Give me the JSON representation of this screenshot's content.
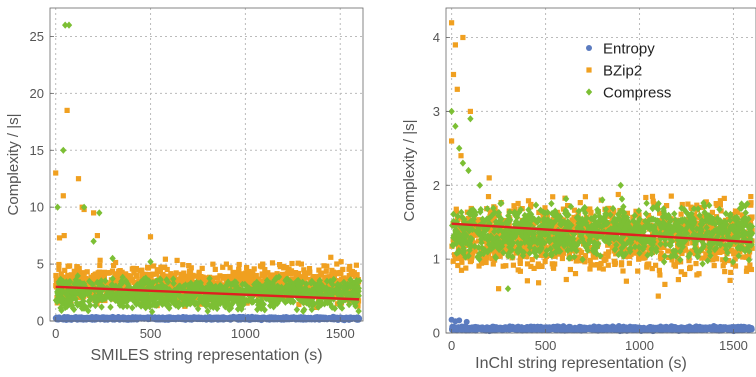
{
  "chart_data": [
    {
      "type": "scatter",
      "title": "",
      "xlabel": "SMILES string representation (s)",
      "ylabel": "Complexity / |s|",
      "xlim": [
        -30,
        1620
      ],
      "ylim": [
        0,
        27.5
      ],
      "xticks": [
        0,
        500,
        1000,
        1500
      ],
      "yticks": [
        0,
        5,
        10,
        15,
        20,
        25
      ],
      "grid": true,
      "legend": "none",
      "series": [
        {
          "name": "Entropy",
          "color": "#5b7bbf",
          "band": {
            "x": [
              0,
              1600
            ],
            "y": [
              0.05,
              0.4
            ]
          },
          "points": [
            [
              5,
              0.3
            ],
            [
              40,
              0.25
            ],
            [
              120,
              0.2
            ]
          ]
        },
        {
          "name": "BZip2",
          "color": "#f0a020",
          "band": {
            "x": [
              0,
              1600
            ],
            "y": [
              1.0,
              5.5
            ]
          },
          "points": [
            [
              0,
              13
            ],
            [
              40,
              11
            ],
            [
              45,
              7.5
            ],
            [
              60,
              18.5
            ],
            [
              120,
              12.5
            ],
            [
              140,
              10
            ],
            [
              150,
              9.8
            ],
            [
              200,
              9.5
            ],
            [
              220,
              7.5
            ],
            [
              500,
              7.4
            ],
            [
              20,
              7.3
            ],
            [
              1450,
              5.6
            ],
            [
              900,
              5.0
            ],
            [
              1200,
              4.8
            ]
          ]
        },
        {
          "name": "Compress",
          "color": "#7cbf34",
          "band": {
            "x": [
              0,
              1600
            ],
            "y": [
              0.5,
              4.2
            ]
          },
          "points": [
            [
              50,
              26
            ],
            [
              70,
              26
            ],
            [
              40,
              15
            ],
            [
              10,
              10
            ],
            [
              150,
              10
            ],
            [
              200,
              7
            ],
            [
              230,
              9.5
            ],
            [
              300,
              5.5
            ],
            [
              500,
              5.2
            ]
          ]
        }
      ],
      "trend": {
        "color": "#e02020",
        "from": [
          0,
          3.0
        ],
        "to": [
          1600,
          1.9
        ]
      }
    },
    {
      "type": "scatter",
      "title": "",
      "xlabel": "InChI string representation (s)",
      "ylabel": "Complexity / |s|",
      "xlim": [
        -30,
        1620
      ],
      "ylim": [
        0,
        4.4
      ],
      "xticks": [
        0,
        500,
        1000,
        1500
      ],
      "yticks": [
        0,
        1,
        2,
        3,
        4
      ],
      "grid": true,
      "legend": "top-right",
      "series": [
        {
          "name": "Entropy",
          "color": "#5b7bbf",
          "band": {
            "x": [
              0,
              1600
            ],
            "y": [
              0.02,
              0.1
            ]
          },
          "points": [
            [
              0,
              0.18
            ],
            [
              20,
              0.16
            ],
            [
              40,
              0.17
            ],
            [
              80,
              0.15
            ]
          ]
        },
        {
          "name": "BZip2",
          "color": "#f0a020",
          "band": {
            "x": [
              0,
              1600
            ],
            "y": [
              0.6,
              1.95
            ]
          },
          "points": [
            [
              0,
              4.2
            ],
            [
              20,
              3.9
            ],
            [
              60,
              4.0
            ],
            [
              10,
              3.5
            ],
            [
              30,
              3.3
            ],
            [
              100,
              3.0
            ],
            [
              0,
              2.6
            ],
            [
              50,
              2.4
            ],
            [
              200,
              2.1
            ],
            [
              250,
              0.6
            ],
            [
              1100,
              0.5
            ]
          ]
        },
        {
          "name": "Compress",
          "color": "#7cbf34",
          "band": {
            "x": [
              0,
              1600
            ],
            "y": [
              0.9,
              1.85
            ]
          },
          "points": [
            [
              0,
              3.0
            ],
            [
              20,
              2.8
            ],
            [
              40,
              2.5
            ],
            [
              60,
              2.3
            ],
            [
              90,
              2.2
            ],
            [
              100,
              2.9
            ],
            [
              150,
              2.0
            ],
            [
              300,
              0.6
            ],
            [
              900,
              2.0
            ]
          ]
        }
      ],
      "trend": {
        "color": "#e02020",
        "from": [
          0,
          1.48
        ],
        "to": [
          1600,
          1.23
        ]
      }
    }
  ]
}
